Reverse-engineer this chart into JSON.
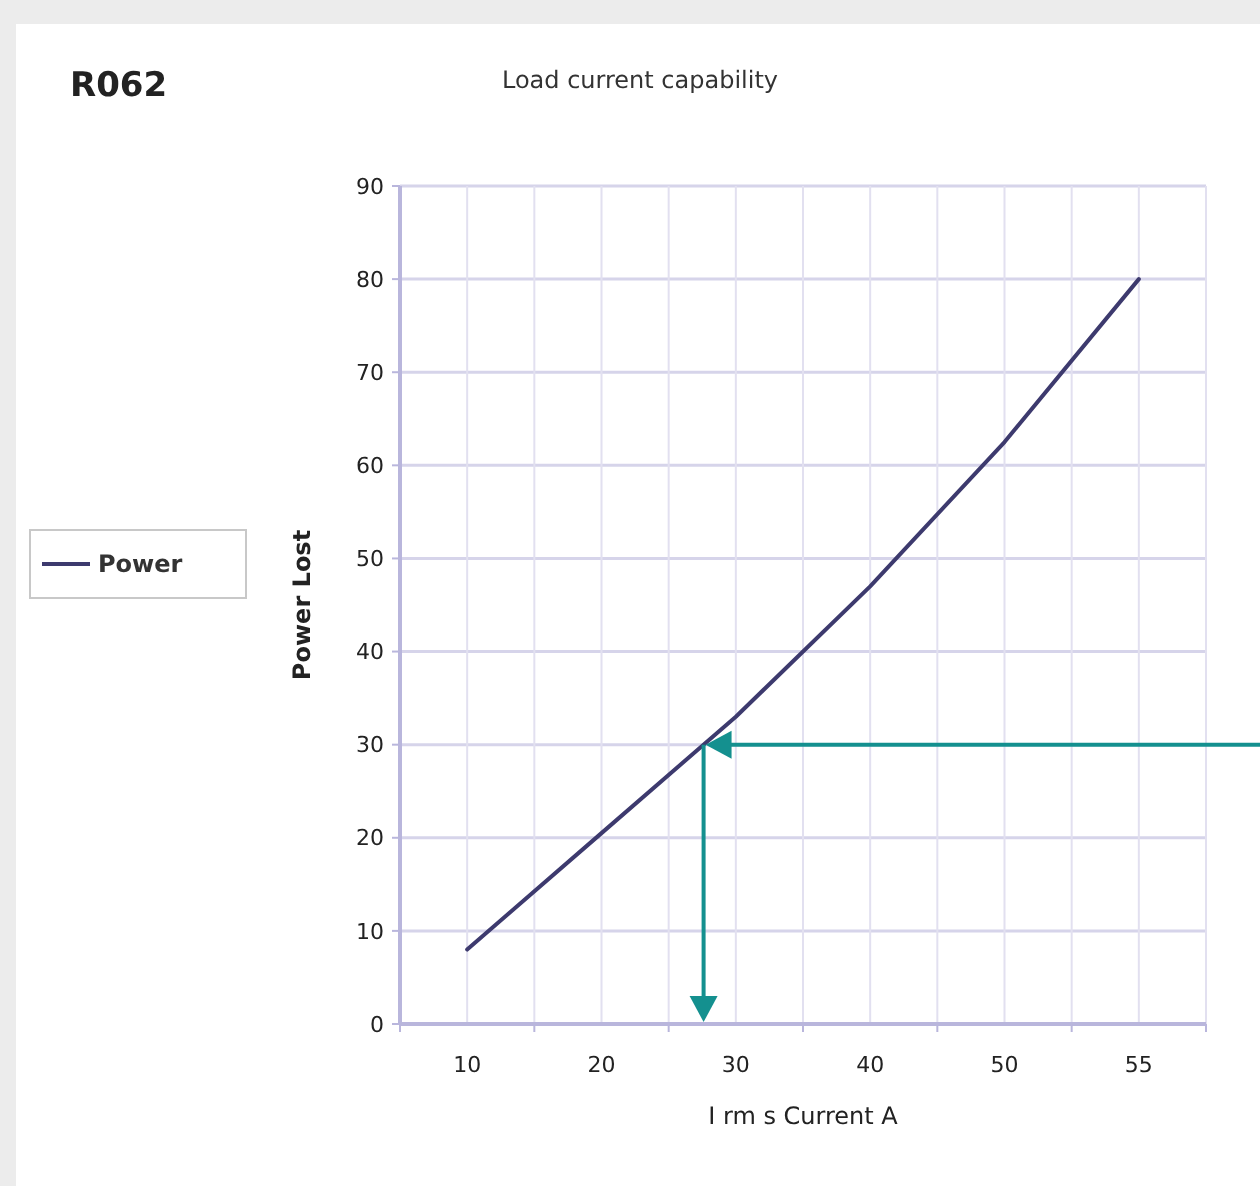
{
  "chart_data": {
    "type": "line",
    "title": "Load current capability",
    "xlabel": "I rm s  Current A",
    "ylabel": "Power Lost",
    "annotations": [
      "R062"
    ],
    "categories": [
      "10",
      "20",
      "30",
      "40",
      "50",
      "55"
    ],
    "series": [
      {
        "name": "Power",
        "color": "#3d3a6e",
        "values": [
          8,
          20.5,
          33,
          47,
          62.5,
          80
        ]
      }
    ],
    "ylim": [
      0,
      90
    ],
    "yticks": [
      0,
      10,
      20,
      30,
      40,
      50,
      60,
      70,
      80,
      90
    ],
    "ref_lines": [
      {
        "axis": "y",
        "value": 30,
        "color": "#14908f"
      }
    ],
    "grid": true,
    "legend": "left",
    "marker": "none",
    "line_style": "solid"
  }
}
